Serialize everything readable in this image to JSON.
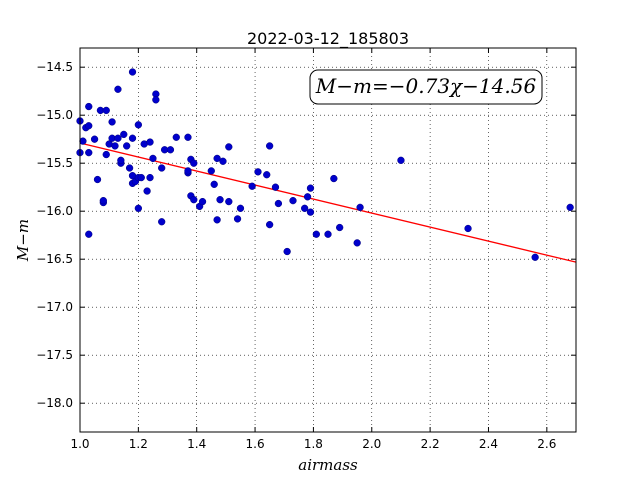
{
  "chart_data": {
    "type": "scatter",
    "title": "2022-03-12_185803",
    "xlabel": "airmass",
    "ylabel": "M−m",
    "xlim": [
      1.0,
      2.7
    ],
    "ylim": [
      -18.3,
      -14.3
    ],
    "y_inverted": true,
    "grid": true,
    "grid_style": "dotted",
    "annotation": "M−m=−0.73χ−14.56",
    "x_ticks": [
      1.0,
      1.2,
      1.4,
      1.6,
      1.8,
      2.0,
      2.2,
      2.4,
      2.6
    ],
    "x_tick_labels": [
      "1.0",
      "1.2",
      "1.4",
      "1.6",
      "1.8",
      "2.0",
      "2.2",
      "2.4",
      "2.6"
    ],
    "y_ticks": [
      -14.5,
      -15.0,
      -15.5,
      -16.0,
      -16.5,
      -17.0,
      -17.5,
      -18.0
    ],
    "y_tick_labels": [
      "−14.5",
      "−15.0",
      "−15.5",
      "−16.0",
      "−16.5",
      "−17.0",
      "−17.5",
      "−18.0"
    ],
    "fit_line": {
      "slope": -0.73,
      "intercept": -14.56,
      "x_range": [
        1.0,
        2.7
      ],
      "color": "#ff0000"
    },
    "marker_color": "#0000cc",
    "points": [
      {
        "x": 1.0,
        "y": -15.06
      },
      {
        "x": 1.0,
        "y": -15.39
      },
      {
        "x": 1.01,
        "y": -15.27
      },
      {
        "x": 1.02,
        "y": -15.13
      },
      {
        "x": 1.03,
        "y": -15.11
      },
      {
        "x": 1.03,
        "y": -14.91
      },
      {
        "x": 1.03,
        "y": -15.39
      },
      {
        "x": 1.03,
        "y": -16.24
      },
      {
        "x": 1.05,
        "y": -15.25
      },
      {
        "x": 1.06,
        "y": -15.67
      },
      {
        "x": 1.07,
        "y": -14.95
      },
      {
        "x": 1.08,
        "y": -15.91
      },
      {
        "x": 1.08,
        "y": -15.89
      },
      {
        "x": 1.09,
        "y": -14.95
      },
      {
        "x": 1.09,
        "y": -15.41
      },
      {
        "x": 1.1,
        "y": -15.3
      },
      {
        "x": 1.11,
        "y": -15.24
      },
      {
        "x": 1.11,
        "y": -15.07
      },
      {
        "x": 1.12,
        "y": -15.32
      },
      {
        "x": 1.13,
        "y": -14.73
      },
      {
        "x": 1.13,
        "y": -15.24
      },
      {
        "x": 1.14,
        "y": -15.5
      },
      {
        "x": 1.14,
        "y": -15.47
      },
      {
        "x": 1.15,
        "y": -15.2
      },
      {
        "x": 1.16,
        "y": -15.32
      },
      {
        "x": 1.17,
        "y": -15.55
      },
      {
        "x": 1.18,
        "y": -14.55
      },
      {
        "x": 1.18,
        "y": -15.24
      },
      {
        "x": 1.18,
        "y": -15.63
      },
      {
        "x": 1.18,
        "y": -15.71
      },
      {
        "x": 1.19,
        "y": -15.69
      },
      {
        "x": 1.2,
        "y": -15.65
      },
      {
        "x": 1.2,
        "y": -15.1
      },
      {
        "x": 1.2,
        "y": -15.97
      },
      {
        "x": 1.21,
        "y": -15.65
      },
      {
        "x": 1.22,
        "y": -15.3
      },
      {
        "x": 1.23,
        "y": -15.79
      },
      {
        "x": 1.24,
        "y": -15.65
      },
      {
        "x": 1.24,
        "y": -15.28
      },
      {
        "x": 1.25,
        "y": -15.45
      },
      {
        "x": 1.26,
        "y": -14.78
      },
      {
        "x": 1.26,
        "y": -14.84
      },
      {
        "x": 1.28,
        "y": -15.55
      },
      {
        "x": 1.28,
        "y": -16.11
      },
      {
        "x": 1.29,
        "y": -15.36
      },
      {
        "x": 1.31,
        "y": -15.36
      },
      {
        "x": 1.33,
        "y": -15.23
      },
      {
        "x": 1.37,
        "y": -15.23
      },
      {
        "x": 1.37,
        "y": -15.6
      },
      {
        "x": 1.37,
        "y": -15.58
      },
      {
        "x": 1.38,
        "y": -15.84
      },
      {
        "x": 1.38,
        "y": -15.46
      },
      {
        "x": 1.39,
        "y": -15.88
      },
      {
        "x": 1.39,
        "y": -15.5
      },
      {
        "x": 1.41,
        "y": -15.95
      },
      {
        "x": 1.42,
        "y": -15.9
      },
      {
        "x": 1.45,
        "y": -15.58
      },
      {
        "x": 1.46,
        "y": -15.72
      },
      {
        "x": 1.47,
        "y": -16.09
      },
      {
        "x": 1.47,
        "y": -15.45
      },
      {
        "x": 1.48,
        "y": -15.88
      },
      {
        "x": 1.49,
        "y": -15.48
      },
      {
        "x": 1.51,
        "y": -15.33
      },
      {
        "x": 1.51,
        "y": -15.9
      },
      {
        "x": 1.54,
        "y": -16.08
      },
      {
        "x": 1.55,
        "y": -15.97
      },
      {
        "x": 1.59,
        "y": -15.74
      },
      {
        "x": 1.61,
        "y": -15.59
      },
      {
        "x": 1.64,
        "y": -15.62
      },
      {
        "x": 1.65,
        "y": -15.32
      },
      {
        "x": 1.65,
        "y": -16.14
      },
      {
        "x": 1.67,
        "y": -15.75
      },
      {
        "x": 1.68,
        "y": -15.92
      },
      {
        "x": 1.71,
        "y": -16.42
      },
      {
        "x": 1.73,
        "y": -15.89
      },
      {
        "x": 1.77,
        "y": -15.97
      },
      {
        "x": 1.78,
        "y": -15.85
      },
      {
        "x": 1.79,
        "y": -15.76
      },
      {
        "x": 1.79,
        "y": -16.01
      },
      {
        "x": 1.81,
        "y": -16.24
      },
      {
        "x": 1.85,
        "y": -16.24
      },
      {
        "x": 1.87,
        "y": -15.66
      },
      {
        "x": 1.89,
        "y": -16.17
      },
      {
        "x": 1.95,
        "y": -16.33
      },
      {
        "x": 1.96,
        "y": -15.96
      },
      {
        "x": 2.1,
        "y": -15.47
      },
      {
        "x": 2.33,
        "y": -16.18
      },
      {
        "x": 2.56,
        "y": -16.48
      },
      {
        "x": 2.68,
        "y": -15.96
      }
    ]
  }
}
